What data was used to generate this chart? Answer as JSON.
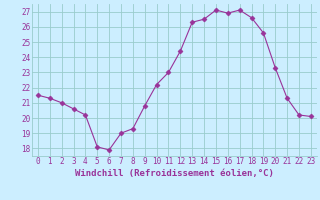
{
  "x": [
    0,
    1,
    2,
    3,
    4,
    5,
    6,
    7,
    8,
    9,
    10,
    11,
    12,
    13,
    14,
    15,
    16,
    17,
    18,
    19,
    20,
    21,
    22,
    23
  ],
  "y": [
    21.5,
    21.3,
    21.0,
    20.6,
    20.2,
    18.1,
    17.9,
    19.0,
    19.3,
    20.8,
    22.2,
    23.0,
    24.4,
    26.3,
    26.5,
    27.1,
    26.9,
    27.1,
    26.6,
    25.6,
    23.3,
    21.3,
    20.2,
    20.1
  ],
  "line_color": "#993399",
  "marker": "D",
  "marker_size": 2.5,
  "bg_color": "#cceeff",
  "grid_color": "#99cccc",
  "xlabel": "Windchill (Refroidissement éolien,°C)",
  "xlabel_color": "#993399",
  "tick_color": "#993399",
  "ylim": [
    17.5,
    27.5
  ],
  "yticks": [
    18,
    19,
    20,
    21,
    22,
    23,
    24,
    25,
    26,
    27
  ],
  "xlim": [
    -0.5,
    23.5
  ],
  "xlabel_fontsize": 6.5,
  "tick_fontsize": 5.5
}
